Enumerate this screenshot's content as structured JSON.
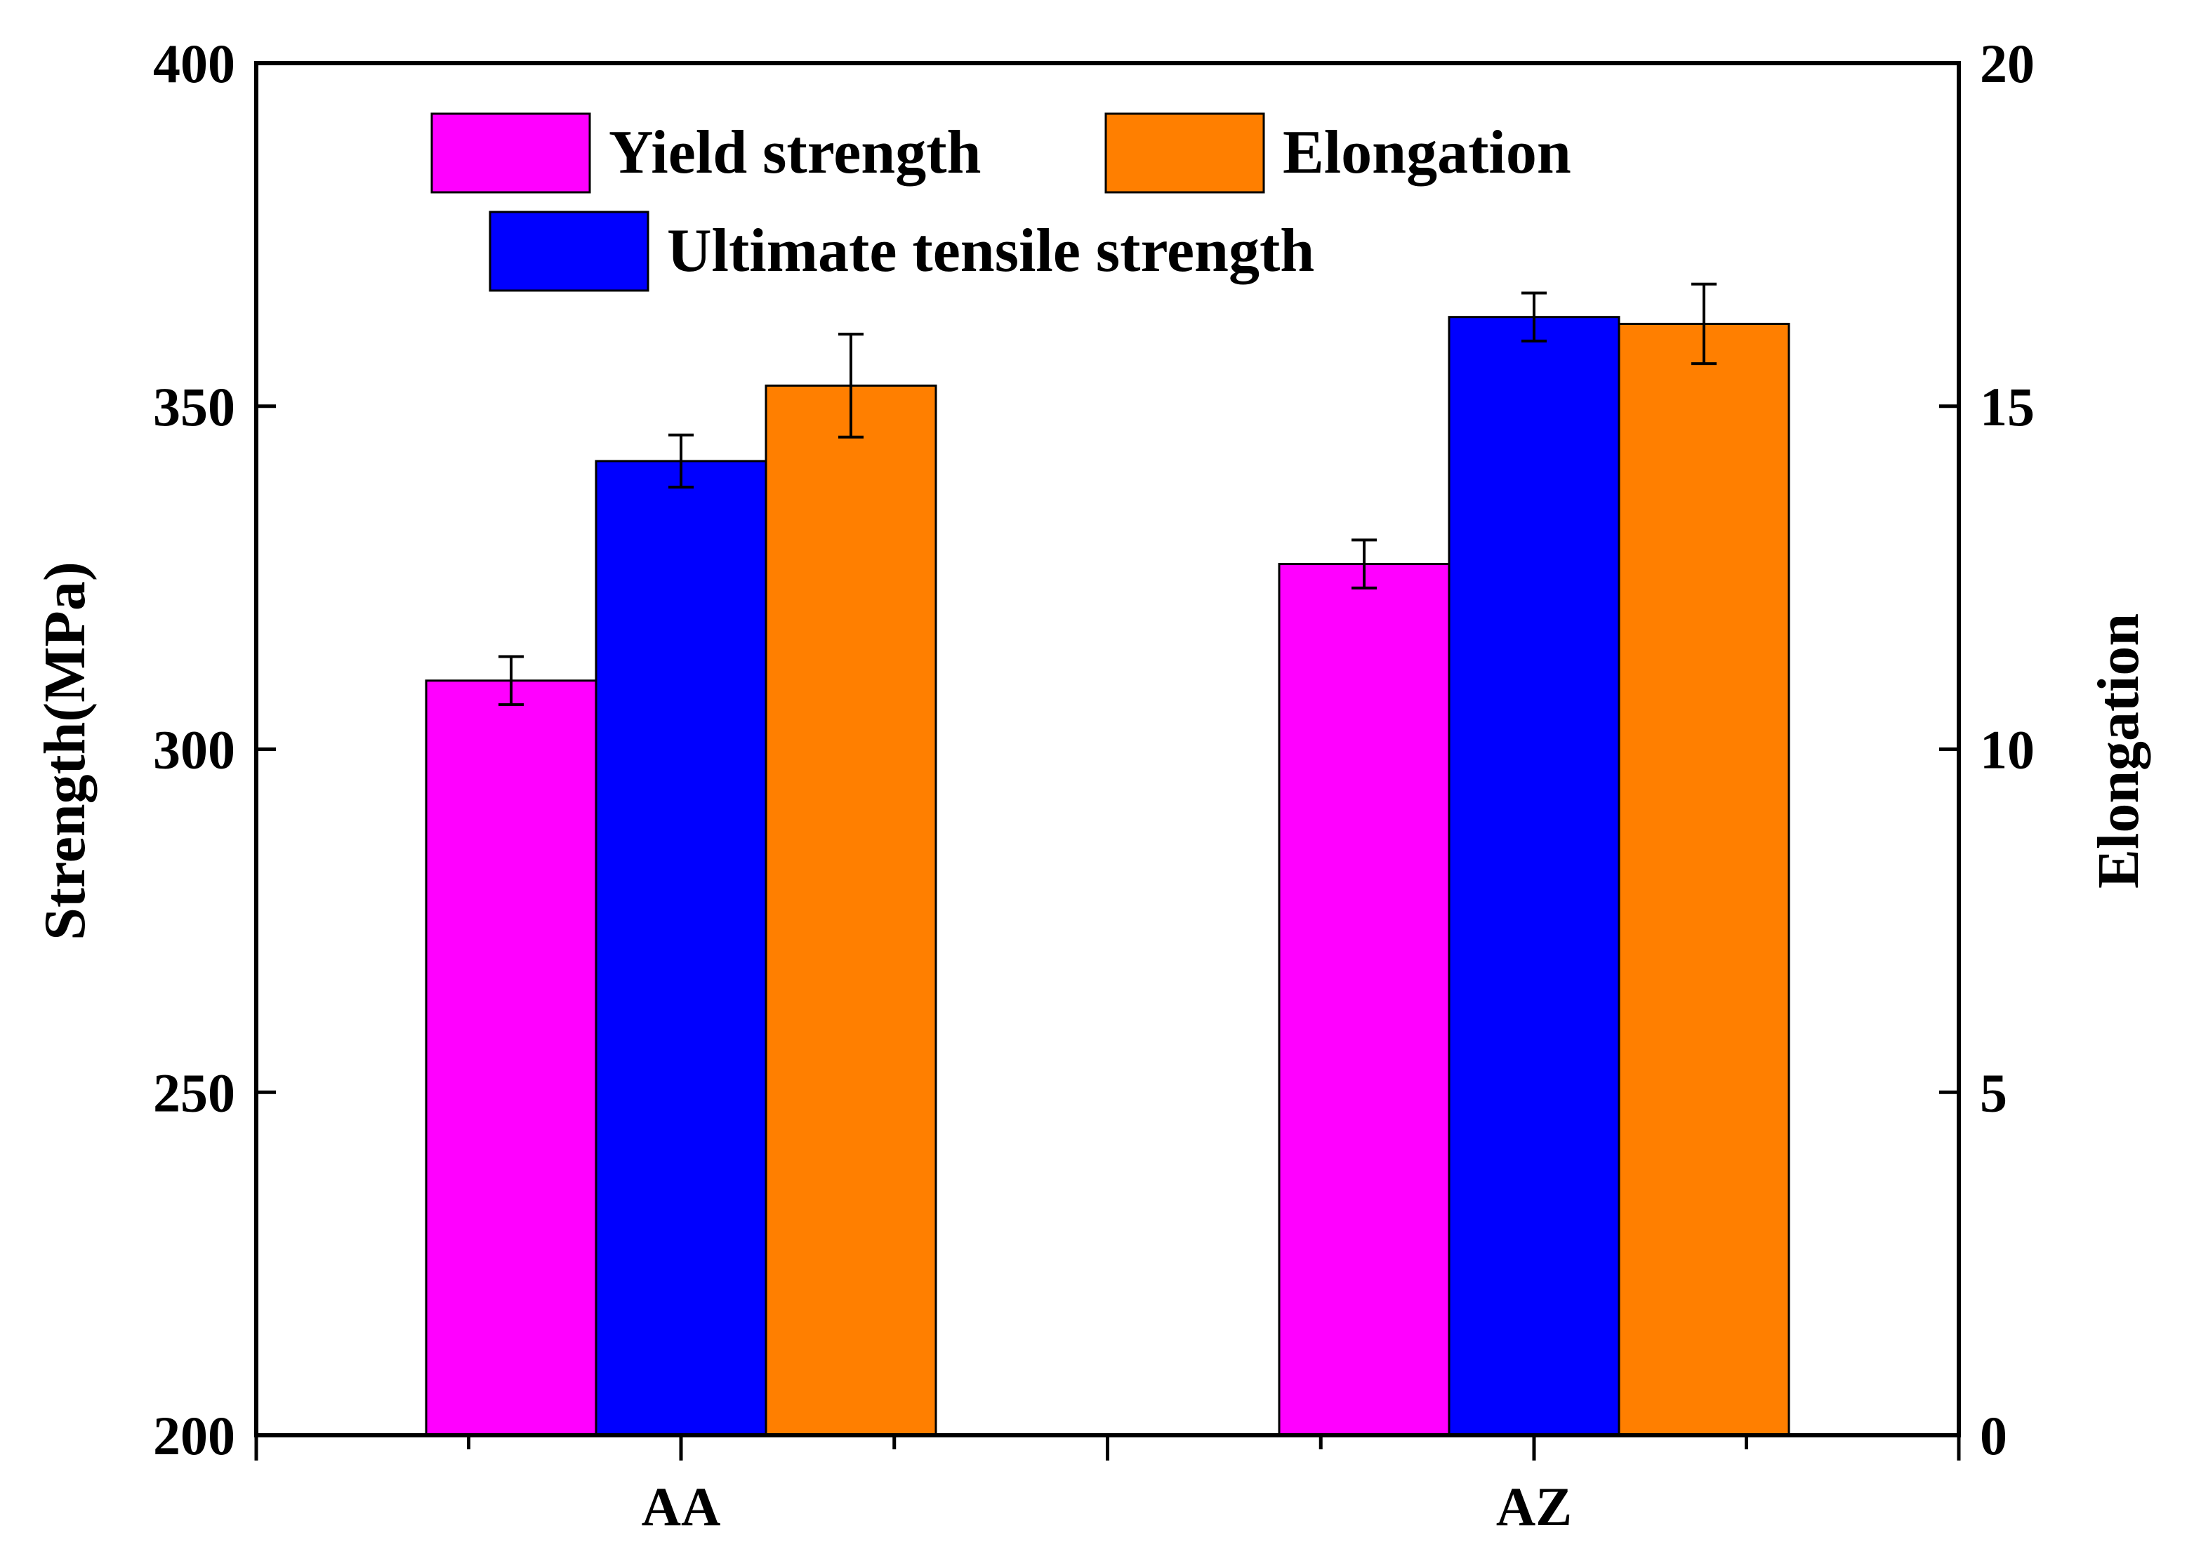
{
  "chart_data": {
    "type": "bar",
    "categories": [
      "AA",
      "AZ"
    ],
    "left_axis": {
      "label": "Strength(MPa)",
      "ylim": [
        200,
        400
      ],
      "ticks": [
        200,
        250,
        300,
        350,
        400
      ]
    },
    "right_axis": {
      "label": "Elongation",
      "ylim": [
        0,
        20
      ],
      "ticks": [
        0,
        5,
        10,
        15,
        20
      ]
    },
    "series": [
      {
        "name": "Yield strength",
        "axis": "left",
        "color": "#ff00ff",
        "values": [
          310,
          327
        ],
        "errors": [
          3.5,
          3.5
        ]
      },
      {
        "name": "Ultimate tensile strength",
        "axis": "left",
        "color": "#0000ff",
        "values": [
          342,
          363
        ],
        "errors": [
          3.8,
          3.5
        ]
      },
      {
        "name": "Elongation",
        "axis": "right",
        "color": "#ff7f00",
        "values": [
          15.3,
          16.2
        ],
        "errors": [
          0.75,
          0.58
        ]
      }
    ],
    "legend": {
      "position": "top-left",
      "entries": [
        "Yield strength",
        "Elongation",
        "Ultimate tensile strength"
      ]
    },
    "grid": false
  }
}
